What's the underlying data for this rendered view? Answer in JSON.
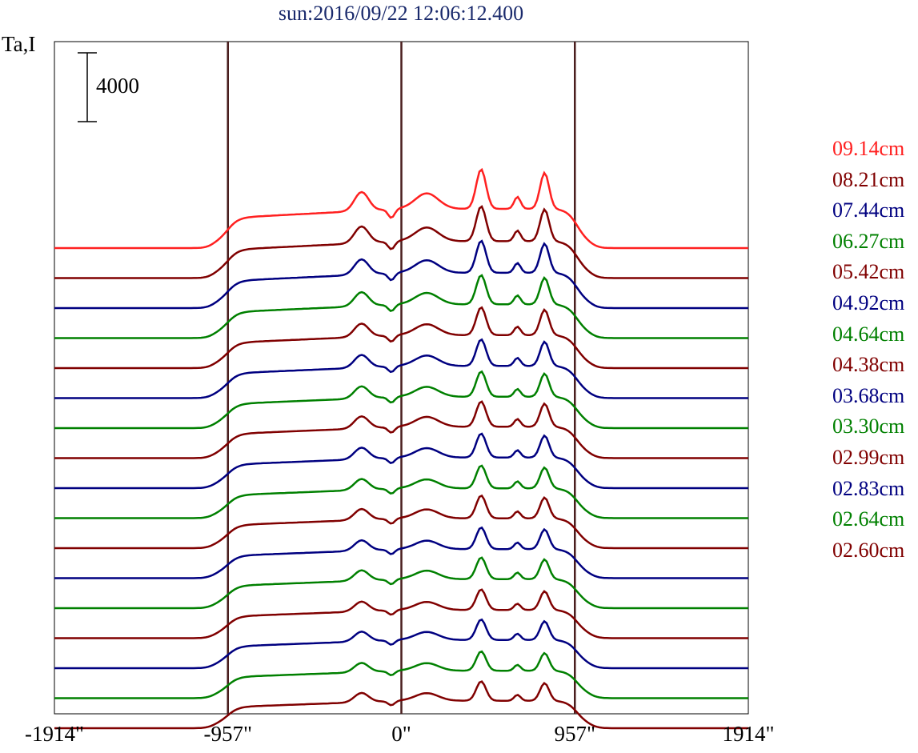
{
  "chart_data": {
    "type": "line",
    "title": "sun:2016/09/22 12:06:12.400",
    "ylabel": "Ta,I",
    "scale_bar_label": "4000",
    "scale_bar_value": 4000,
    "x_ticks": [
      {
        "value": -1914,
        "label": "-1914\""
      },
      {
        "value": -957,
        "label": "-957\""
      },
      {
        "value": 0,
        "label": "0\""
      },
      {
        "value": 957,
        "label": "957\""
      },
      {
        "value": 1914,
        "label": "1914\""
      }
    ],
    "xlim": [
      -1914,
      1914
    ],
    "vertical_lines_at": [
      -957,
      0,
      957
    ],
    "series": [
      {
        "name": "09.14cm",
        "color": "#ff2020",
        "amplitude": 1.0
      },
      {
        "name": "08.21cm",
        "color": "#800000",
        "amplitude": 0.94
      },
      {
        "name": "07.44cm",
        "color": "#000080",
        "amplitude": 0.9
      },
      {
        "name": "06.27cm",
        "color": "#008000",
        "amplitude": 0.86
      },
      {
        "name": "05.42cm",
        "color": "#800000",
        "amplitude": 0.84
      },
      {
        "name": "04.92cm",
        "color": "#000080",
        "amplitude": 0.82
      },
      {
        "name": "04.64cm",
        "color": "#008000",
        "amplitude": 0.8
      },
      {
        "name": "04.38cm",
        "color": "#800000",
        "amplitude": 0.8
      },
      {
        "name": "03.68cm",
        "color": "#000080",
        "amplitude": 0.78
      },
      {
        "name": "03.30cm",
        "color": "#008000",
        "amplitude": 0.76
      },
      {
        "name": "02.99cm",
        "color": "#800000",
        "amplitude": 0.76
      },
      {
        "name": "02.83cm",
        "color": "#000080",
        "amplitude": 0.74
      },
      {
        "name": "02.64cm",
        "color": "#008000",
        "amplitude": 0.74
      },
      {
        "name": "02.60cm",
        "color": "#800000",
        "amplitude": 0.72
      },
      {
        "name": "",
        "color": "#000080",
        "amplitude": 0.72
      },
      {
        "name": "",
        "color": "#008000",
        "amplitude": 0.7
      },
      {
        "name": "",
        "color": "#800000",
        "amplitude": 0.7
      }
    ],
    "grid": false
  }
}
